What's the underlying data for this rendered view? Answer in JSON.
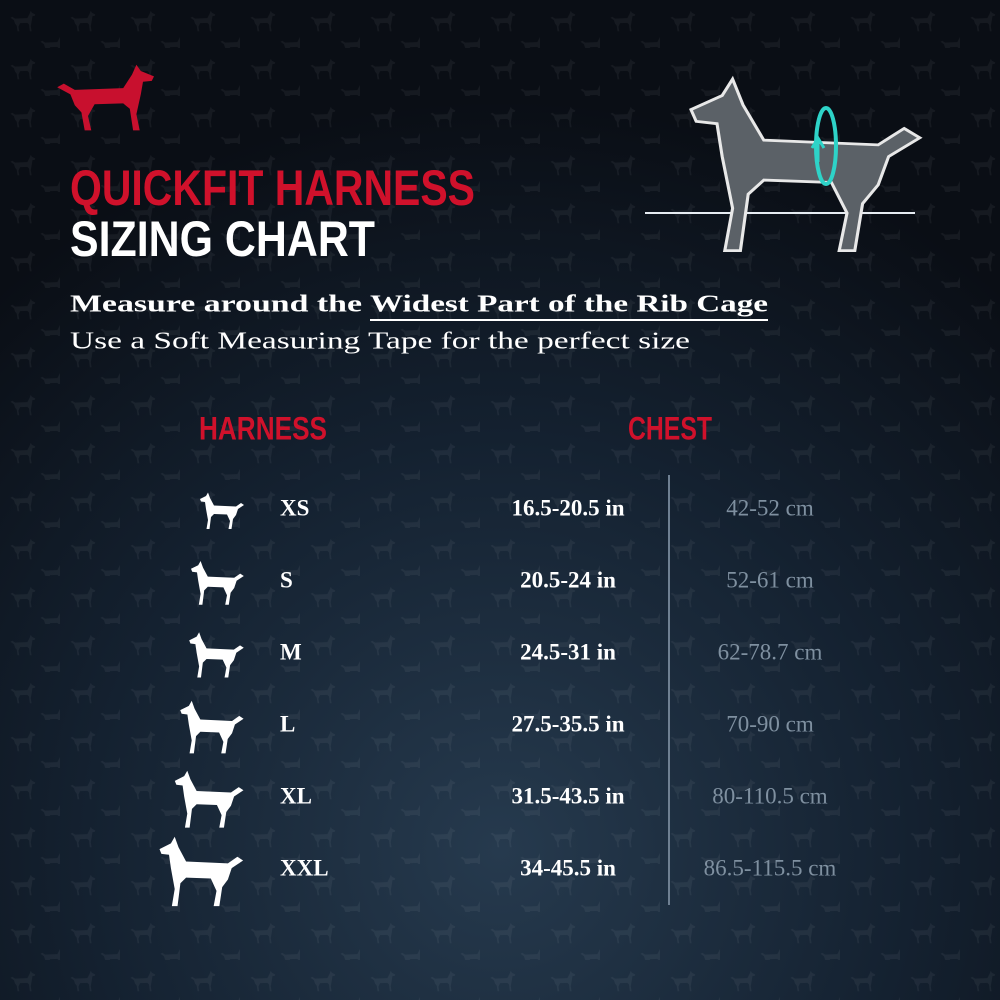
{
  "header": {
    "title_line1": "QUICKFIT HARNESS",
    "title_line2": "SIZING CHART"
  },
  "instructions": {
    "line1_prefix": "Measure around the",
    "line1_emphasis": "Widest Part of the Rib Cage",
    "line2": "Use a Soft Measuring Tape for the perfect size"
  },
  "table": {
    "columns": [
      "HARNESS",
      "CHEST"
    ],
    "rows": [
      [
        "XS",
        "16.5-20.5 in",
        "42-52 cm"
      ],
      [
        "S",
        "20.5-24 in",
        "52-61 cm"
      ],
      [
        "M",
        "24.5-31 in",
        "62-78.7 cm"
      ],
      [
        "L",
        "27.5-35.5 in",
        "70-90 cm"
      ],
      [
        "XL",
        "31.5-43.5 in",
        "80-110.5 cm"
      ],
      [
        "XXL",
        "34-45.5 in",
        "86.5-115.5 cm"
      ]
    ]
  }
}
